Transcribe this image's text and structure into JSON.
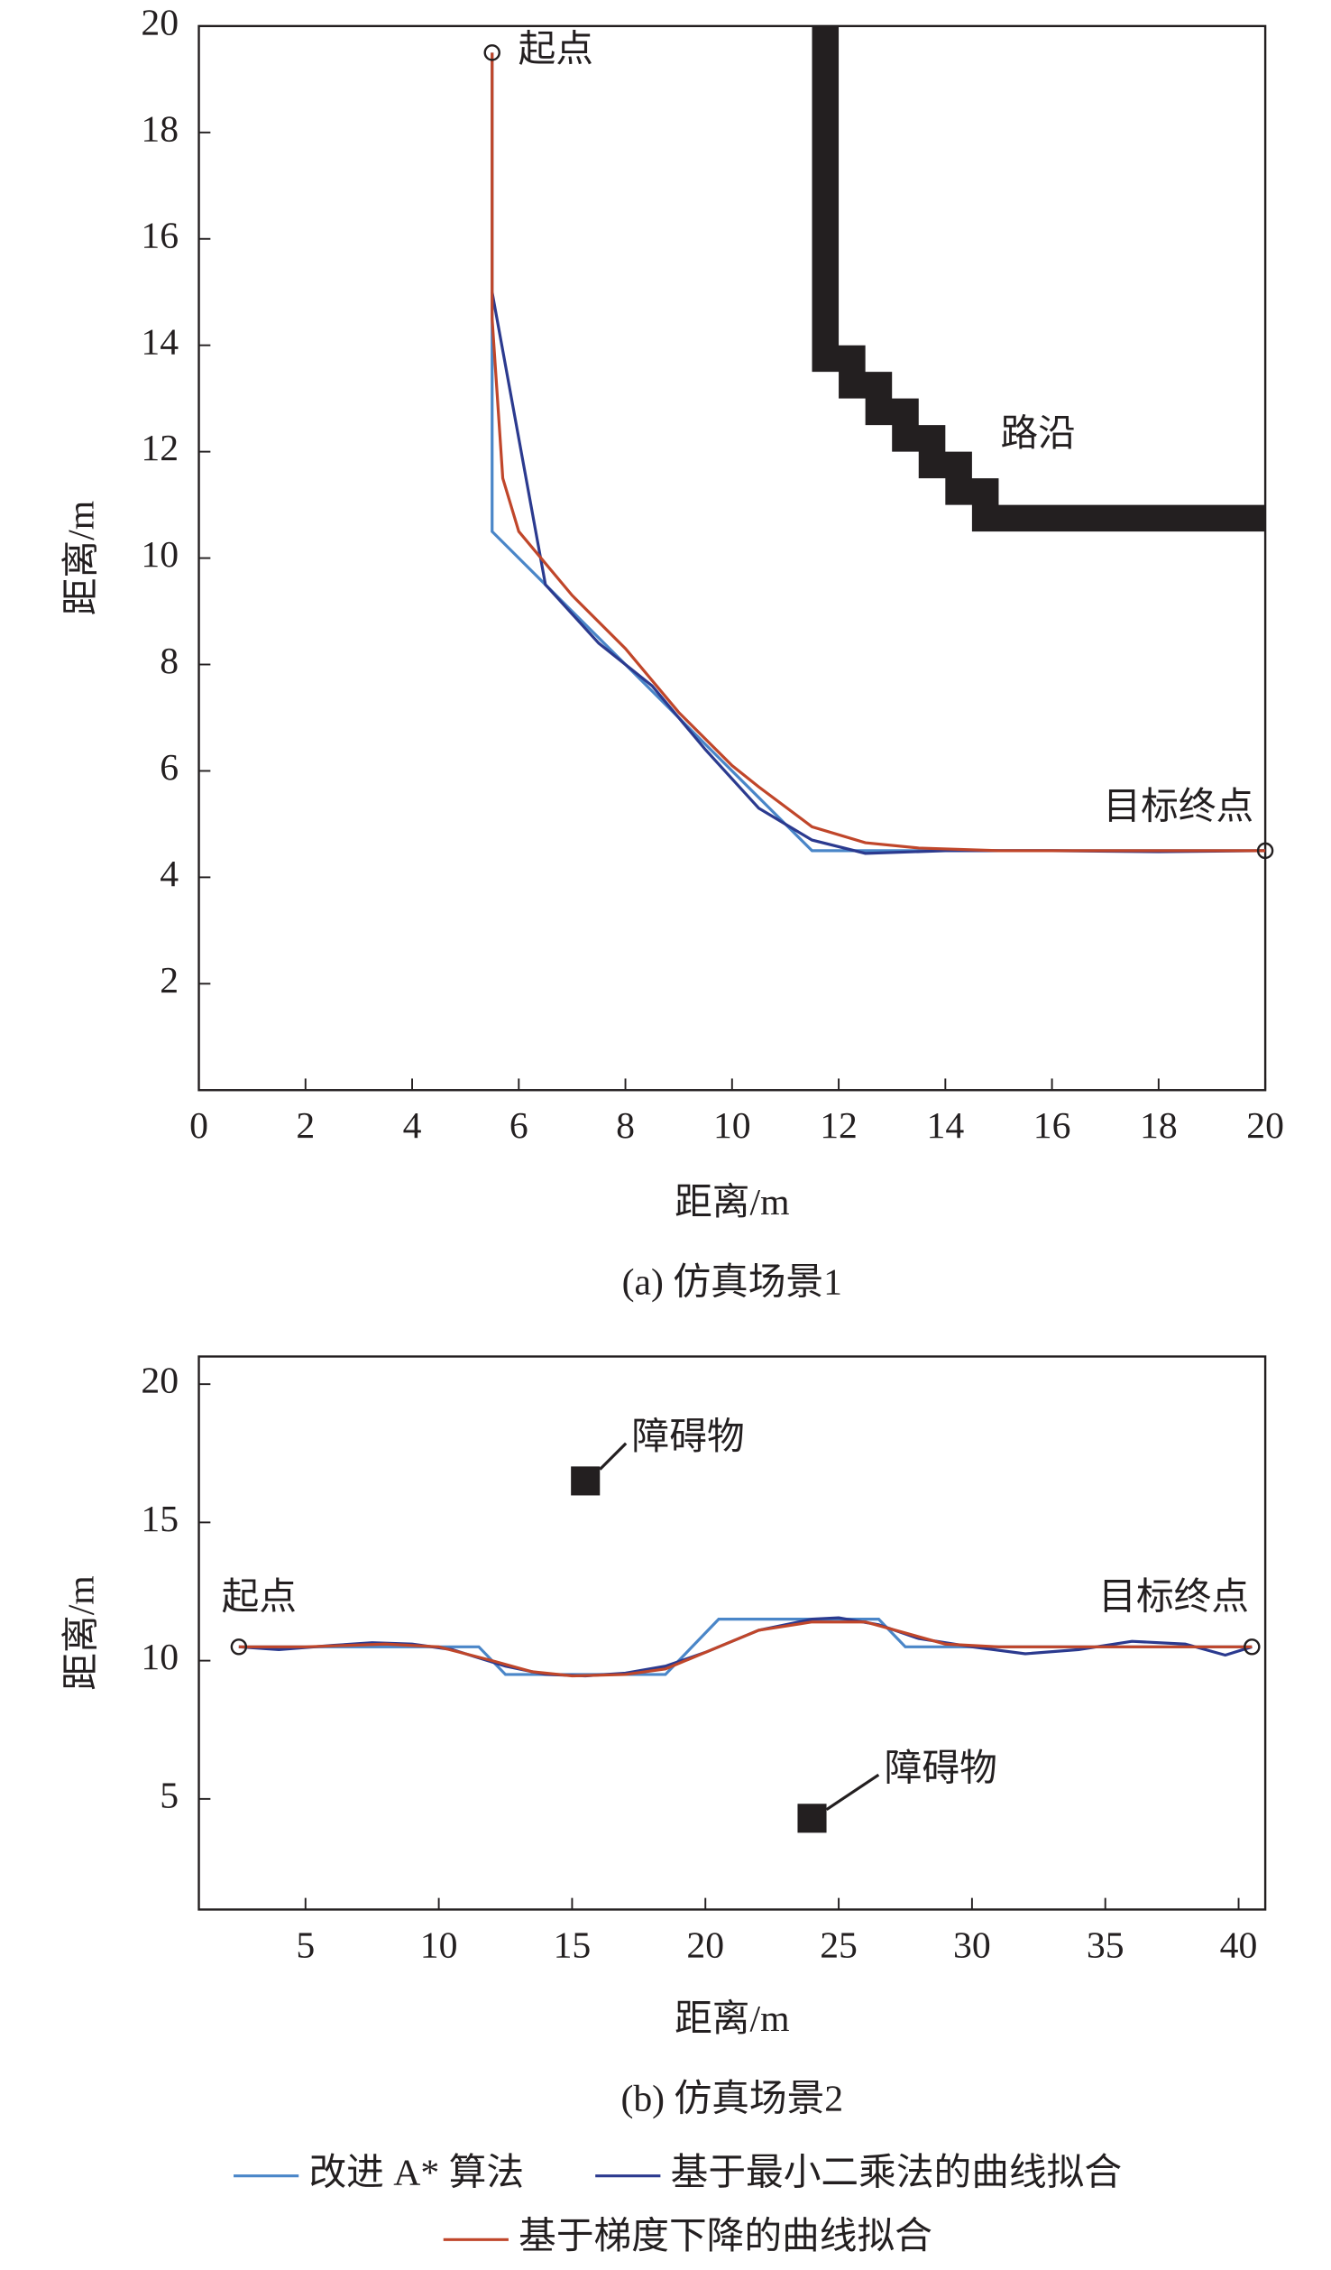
{
  "chart_data": [
    {
      "type": "line",
      "caption": "(a) 仿真场景1",
      "xlabel": "距离/m",
      "ylabel": "距离/m",
      "xlim": [
        0,
        20
      ],
      "ylim": [
        0,
        20
      ],
      "xticks": [
        0,
        2,
        4,
        6,
        8,
        10,
        12,
        14,
        16,
        18,
        20
      ],
      "yticks": [
        2,
        4,
        6,
        8,
        10,
        12,
        14,
        16,
        18,
        20
      ],
      "series": [
        {
          "color": "#4a86c8",
          "x": [
            5.5,
            5.5,
            6.5,
            7.5,
            8.5,
            9.5,
            10.5,
            11.5,
            20
          ],
          "values": [
            19.5,
            10.5,
            9.5,
            8.5,
            7.5,
            6.5,
            5.5,
            4.5,
            4.5
          ]
        },
        {
          "color": "#2b3a8f",
          "x": [
            5.5,
            6.5,
            7.5,
            8.5,
            9.5,
            10.5,
            11.5,
            12.5,
            14,
            16,
            18,
            20
          ],
          "values": [
            15,
            9.5,
            8.4,
            7.6,
            6.4,
            5.3,
            4.7,
            4.45,
            4.5,
            4.5,
            4.48,
            4.5
          ]
        },
        {
          "color": "#c0462a",
          "x": [
            5.5,
            5.5,
            5.7,
            6,
            7,
            8,
            9,
            10,
            10.5,
            11.5,
            12.5,
            13.5,
            15,
            20
          ],
          "values": [
            19.5,
            14.5,
            11.5,
            10.5,
            9.3,
            8.3,
            7.1,
            6.1,
            5.7,
            4.95,
            4.65,
            4.55,
            4.5,
            4.5
          ]
        }
      ],
      "curb": {
        "label": "路沿",
        "x": [
          11.5,
          12,
          12,
          12.5,
          12.5,
          13,
          13,
          13.5,
          13.5,
          14,
          14,
          14.5,
          14.5,
          15,
          15,
          20,
          20,
          14.5,
          14.5,
          14,
          14,
          13.5,
          13.5,
          13,
          13,
          12.5,
          12.5,
          12,
          12,
          11.5
        ],
        "y": [
          20,
          20,
          14,
          14,
          13.5,
          13.5,
          13,
          13,
          12.5,
          12.5,
          12,
          12,
          11.5,
          11.5,
          11,
          11,
          10.5,
          10.5,
          11,
          11,
          11.5,
          11.5,
          12,
          12,
          12.5,
          12.5,
          13,
          13,
          13.5,
          13.5
        ]
      },
      "start": {
        "label": "起点",
        "x": 5.5,
        "y": 19.5
      },
      "goal": {
        "label": "目标终点",
        "x": 20,
        "y": 4.5
      }
    },
    {
      "type": "line",
      "caption": "(b) 仿真场景2",
      "xlabel": "距离/m",
      "ylabel": "距离/m",
      "xlim": [
        1,
        41
      ],
      "ylim": [
        1,
        21
      ],
      "xticks": [
        5,
        10,
        15,
        20,
        25,
        30,
        35,
        40
      ],
      "yticks": [
        5,
        10,
        15,
        20
      ],
      "series": [
        {
          "name": "改进 A* 算法",
          "color": "#4a86c8",
          "x": [
            2.5,
            11.5,
            12.5,
            18.5,
            20.5,
            26.5,
            27.5,
            40.5
          ],
          "values": [
            10.5,
            10.5,
            9.5,
            9.5,
            11.5,
            11.5,
            10.5,
            10.5
          ]
        },
        {
          "name": "基于最小二乘法的曲线拟合",
          "color": "#2b3a8f",
          "x": [
            2.5,
            4,
            6,
            7.5,
            9,
            10.5,
            12.5,
            14,
            15.5,
            17,
            18.5,
            20,
            22,
            24,
            25,
            26.5,
            28,
            30,
            32,
            34,
            36,
            38,
            39.5,
            40.5
          ],
          "values": [
            10.5,
            10.4,
            10.55,
            10.65,
            10.6,
            10.4,
            9.8,
            9.5,
            9.45,
            9.55,
            9.8,
            10.3,
            11.1,
            11.5,
            11.55,
            11.3,
            10.8,
            10.5,
            10.25,
            10.4,
            10.7,
            10.6,
            10.2,
            10.5
          ]
        },
        {
          "name": "基于梯度下降的曲线拟合",
          "color": "#c0462a",
          "x": [
            2.5,
            5,
            8,
            10,
            12,
            13.5,
            15,
            17,
            18.5,
            20.5,
            22,
            24,
            26,
            27.5,
            29,
            31,
            35,
            40.5
          ],
          "values": [
            10.5,
            10.5,
            10.6,
            10.5,
            10,
            9.6,
            9.45,
            9.5,
            9.7,
            10.5,
            11.1,
            11.4,
            11.4,
            11,
            10.6,
            10.5,
            10.5,
            10.5
          ]
        }
      ],
      "obstacles": [
        {
          "label": "障碍物",
          "x": 15.5,
          "y": 16.5
        },
        {
          "label": "障碍物",
          "x": 24,
          "y": 4.3
        }
      ],
      "start": {
        "label": "起点",
        "x": 2.5,
        "y": 10.5
      },
      "goal": {
        "label": "目标终点",
        "x": 40.5,
        "y": 10.5
      }
    }
  ]
}
